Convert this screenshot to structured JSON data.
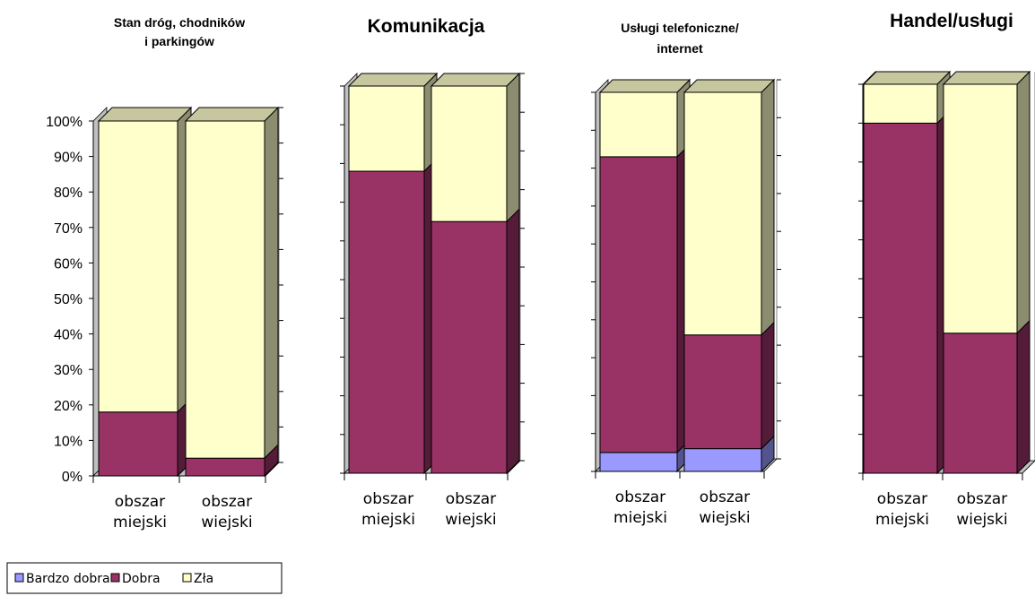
{
  "chart_data": [
    {
      "type": "bar",
      "stacked": "percent",
      "title": "Stan dróg, chodników i parkingów",
      "title_lines": [
        "Stan dróg, chodników",
        "i parkingów"
      ],
      "categories": [
        "obszar miejski",
        "obszar wiejski"
      ],
      "category_lines": [
        [
          "obszar",
          "miejski"
        ],
        [
          "obszar",
          "wiejski"
        ]
      ],
      "series": [
        {
          "name": "Bardzo dobra",
          "values": [
            0,
            0
          ]
        },
        {
          "name": "Dobra",
          "values": [
            18,
            5
          ]
        },
        {
          "name": "Zła",
          "values": [
            82,
            95
          ]
        }
      ],
      "ylim": [
        0,
        100
      ],
      "yticks": [
        "0%",
        "10%",
        "20%",
        "30%",
        "40%",
        "50%",
        "60%",
        "70%",
        "80%",
        "90%",
        "100%"
      ],
      "show_y_labels": true
    },
    {
      "type": "bar",
      "stacked": "percent",
      "title": "Komunikacja",
      "title_lines": [
        "Komunikacja"
      ],
      "categories": [
        "obszar miejski",
        "obszar wiejski"
      ],
      "category_lines": [
        [
          "obszar",
          "miejski"
        ],
        [
          "obszar",
          "wiejski"
        ]
      ],
      "series": [
        {
          "name": "Bardzo dobra",
          "values": [
            0,
            0
          ]
        },
        {
          "name": "Dobra",
          "values": [
            78,
            65
          ]
        },
        {
          "name": "Zła",
          "values": [
            22,
            35
          ]
        }
      ],
      "ylim": [
        0,
        100
      ],
      "show_y_labels": false
    },
    {
      "type": "bar",
      "stacked": "percent",
      "title": "Usługi telefoniczne/ internet",
      "title_lines": [
        "Usługi telefoniczne/",
        "internet"
      ],
      "categories": [
        "obszar miejski",
        "obszar wiejski"
      ],
      "category_lines": [
        [
          "obszar",
          "miejski"
        ],
        [
          "obszar",
          "wiejski"
        ]
      ],
      "series": [
        {
          "name": "Bardzo dobra",
          "values": [
            5,
            6
          ]
        },
        {
          "name": "Dobra",
          "values": [
            78,
            30
          ]
        },
        {
          "name": "Zła",
          "values": [
            17,
            64
          ]
        }
      ],
      "ylim": [
        0,
        100
      ],
      "show_y_labels": false
    },
    {
      "type": "bar",
      "stacked": "percent",
      "title": "Handel/usługi",
      "title_lines": [
        "Handel/usługi"
      ],
      "categories": [
        "obszar miejski",
        "obszar wiejski"
      ],
      "category_lines": [
        [
          "obszar",
          "miejski"
        ],
        [
          "obszar",
          "wiejski"
        ]
      ],
      "series": [
        {
          "name": "Bardzo dobra",
          "values": [
            0,
            0
          ]
        },
        {
          "name": "Dobra",
          "values": [
            90,
            36
          ]
        },
        {
          "name": "Zła",
          "values": [
            10,
            64
          ]
        }
      ],
      "ylim": [
        0,
        100
      ],
      "show_y_labels": false
    }
  ],
  "legend": {
    "position": "bottom-left",
    "items": [
      {
        "label": "Bardzo dobra",
        "color": "#9999ff"
      },
      {
        "label": "Dobra",
        "color": "#993366"
      },
      {
        "label": "Zła",
        "color": "#ffffcc"
      }
    ]
  },
  "colors": {
    "bardzo_dobra": "#9999ff",
    "dobra": "#993366",
    "zla": "#ffffcc",
    "wall": "#c0c0c0",
    "edge": "#000000"
  }
}
